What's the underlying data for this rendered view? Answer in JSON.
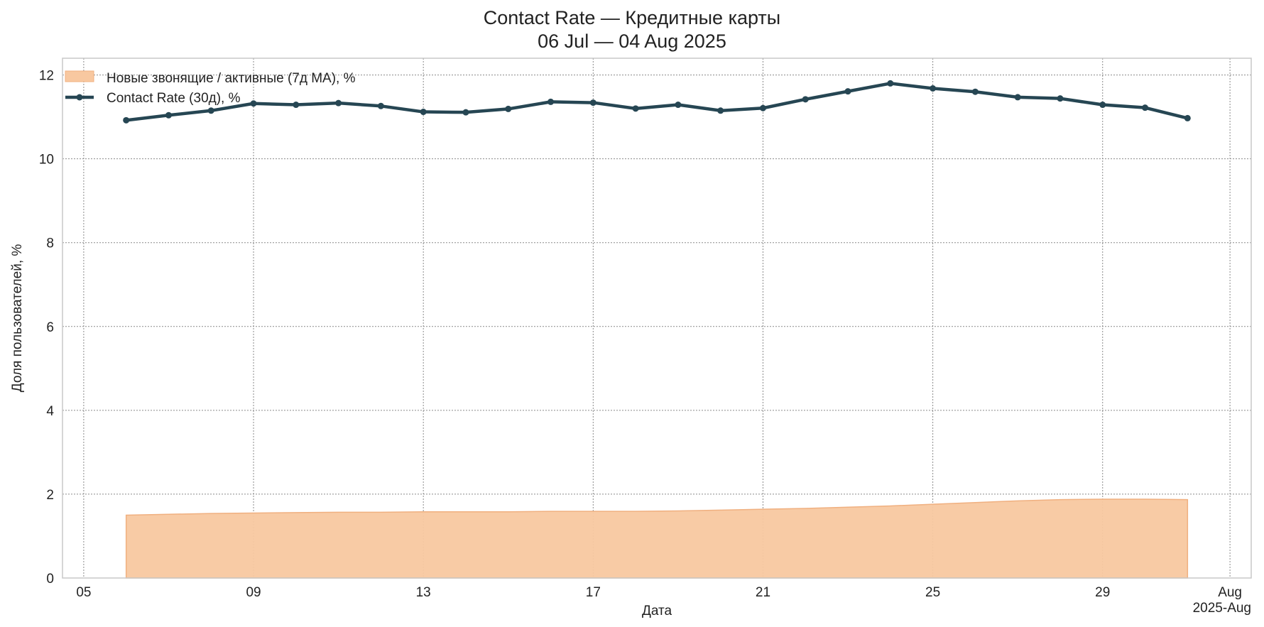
{
  "chart_data": {
    "type": "line",
    "title": "Contact Rate — Кредитные карты",
    "subtitle": "06 Jul — 04 Aug 2025",
    "xlabel": "Дата",
    "ylabel": "Доля пользователей, %",
    "x_offset_label": "2025-Aug",
    "ylim": [
      0,
      12.4
    ],
    "grid": true,
    "legend_position": "top-left",
    "x_ticks": [
      "05",
      "09",
      "13",
      "17",
      "21",
      "25",
      "29",
      "Aug"
    ],
    "y_ticks": [
      "0",
      "2",
      "4",
      "6",
      "8",
      "10",
      "12"
    ],
    "x": [
      "2025-07-06",
      "2025-07-07",
      "2025-07-08",
      "2025-07-09",
      "2025-07-10",
      "2025-07-11",
      "2025-07-12",
      "2025-07-13",
      "2025-07-14",
      "2025-07-15",
      "2025-07-16",
      "2025-07-17",
      "2025-07-18",
      "2025-07-19",
      "2025-07-20",
      "2025-07-21",
      "2025-07-22",
      "2025-07-23",
      "2025-07-24",
      "2025-07-25",
      "2025-07-26",
      "2025-07-27",
      "2025-07-28",
      "2025-07-29",
      "2025-07-30",
      "2025-07-31"
    ],
    "series": [
      {
        "name": "Новые звонящие / активные (7д MA), %",
        "kind": "area",
        "color": "#f8c8a0",
        "edge_color": "#f0b080",
        "values": [
          1.5,
          1.52,
          1.54,
          1.55,
          1.56,
          1.57,
          1.57,
          1.58,
          1.58,
          1.58,
          1.59,
          1.59,
          1.59,
          1.6,
          1.62,
          1.64,
          1.66,
          1.69,
          1.72,
          1.76,
          1.8,
          1.84,
          1.87,
          1.88,
          1.88,
          1.87
        ]
      },
      {
        "name": "Contact Rate (30д), %",
        "kind": "line",
        "color": "#264653",
        "values": [
          10.92,
          11.04,
          11.15,
          11.32,
          11.29,
          11.33,
          11.26,
          11.12,
          11.11,
          11.19,
          11.36,
          11.34,
          11.2,
          11.29,
          11.15,
          11.21,
          11.42,
          11.61,
          11.8,
          11.68,
          11.6,
          11.47,
          11.44,
          11.29,
          11.22,
          10.97
        ]
      }
    ]
  }
}
